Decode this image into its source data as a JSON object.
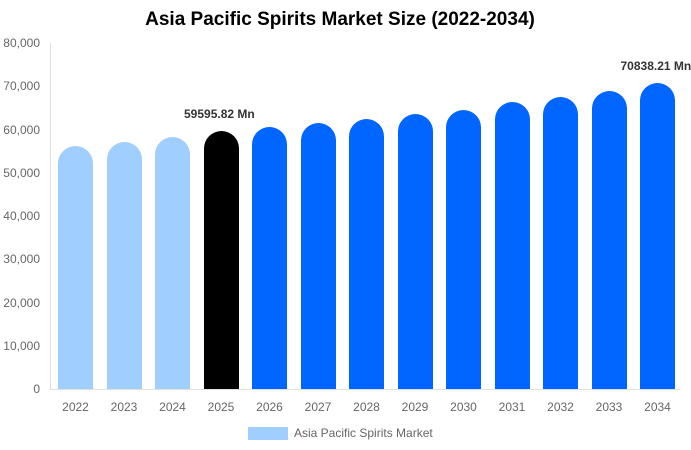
{
  "chart_data": {
    "type": "bar",
    "title": "Asia Pacific Spirits Market Size (2022-2034)",
    "xlabel": "",
    "ylabel": "",
    "ylim": [
      0,
      80000
    ],
    "yticks": [
      "0",
      "10,000",
      "20,000",
      "30,000",
      "40,000",
      "50,000",
      "60,000",
      "70,000",
      "80,000"
    ],
    "grid": false,
    "legend_position": "bottom",
    "categories": [
      "2022",
      "2023",
      "2024",
      "2025",
      "2026",
      "2027",
      "2028",
      "2029",
      "2030",
      "2031",
      "2032",
      "2033",
      "2034"
    ],
    "series": [
      {
        "name": "Asia Pacific Spirits Market",
        "values": [
          56200,
          57000,
          58200,
          59595.82,
          60500,
          61400,
          62500,
          63500,
          64500,
          66300,
          67400,
          69000,
          70838.21
        ]
      }
    ],
    "bar_colors": [
      "#a0cfff",
      "#a0cfff",
      "#a0cfff",
      "#000000",
      "#0066ff",
      "#0066ff",
      "#0066ff",
      "#0066ff",
      "#0066ff",
      "#0066ff",
      "#0066ff",
      "#0066ff",
      "#0066ff"
    ],
    "annotations": [
      {
        "category": "2025",
        "text": "59595.82 Mn"
      },
      {
        "category": "2034",
        "text": "70838.21 Mn"
      }
    ]
  },
  "legend": {
    "label": "Asia Pacific Spirits Market",
    "color": "#a0cfff"
  }
}
